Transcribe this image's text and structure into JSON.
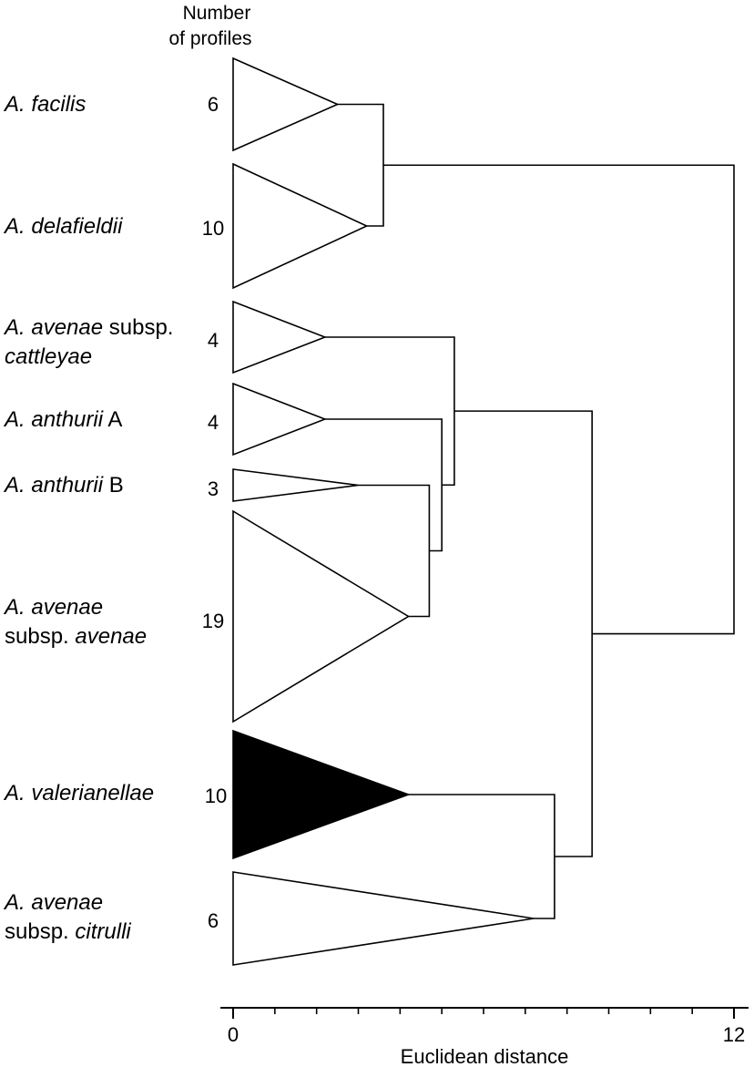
{
  "header": {
    "line1": "Number",
    "line2": "of profiles"
  },
  "taxa": [
    {
      "id": "facilis",
      "label_lines": [
        [
          {
            "text": "A. facilis",
            "italic": true
          }
        ]
      ],
      "count": "6"
    },
    {
      "id": "delafieldii",
      "label_lines": [
        [
          {
            "text": "A. delafieldii",
            "italic": true
          }
        ]
      ],
      "count": "10"
    },
    {
      "id": "cattleyae",
      "label_lines": [
        [
          {
            "text": "A. avenae",
            "italic": true
          },
          {
            "text": " subsp.",
            "italic": false
          }
        ],
        [
          {
            "text": "cattleyae",
            "italic": true
          }
        ]
      ],
      "count": "4"
    },
    {
      "id": "anthurii-a",
      "label_lines": [
        [
          {
            "text": "A. anthurii",
            "italic": true
          },
          {
            "text": " A",
            "italic": false
          }
        ]
      ],
      "count": "4"
    },
    {
      "id": "anthurii-b",
      "label_lines": [
        [
          {
            "text": "A. anthurii",
            "italic": true
          },
          {
            "text": " B",
            "italic": false
          }
        ]
      ],
      "count": "3"
    },
    {
      "id": "avenae-avenae",
      "label_lines": [
        [
          {
            "text": "A. avenae",
            "italic": true
          }
        ],
        [
          {
            "text": "subsp. ",
            "italic": false
          },
          {
            "text": "avenae",
            "italic": true
          }
        ]
      ],
      "count": "19"
    },
    {
      "id": "valerianellae",
      "label_lines": [
        [
          {
            "text": "A. valerianellae",
            "italic": true
          }
        ]
      ],
      "count": "10",
      "filled": true
    },
    {
      "id": "citrulli",
      "label_lines": [
        [
          {
            "text": "A. avenae",
            "italic": true
          }
        ],
        [
          {
            "text": "subsp. ",
            "italic": false
          },
          {
            "text": "citrulli",
            "italic": true
          }
        ]
      ],
      "count": "6"
    }
  ],
  "axis": {
    "label": "Euclidean distance",
    "min": 0,
    "max": 12,
    "tick_labels": [
      "0",
      "12"
    ],
    "minor_step": 1
  },
  "tree": {
    "tips": [
      {
        "id": "facilis",
        "depth": 2.5
      },
      {
        "id": "delafieldii",
        "depth": 3.2
      },
      {
        "id": "cattleyae",
        "depth": 2.2
      },
      {
        "id": "anthurii-a",
        "depth": 2.2
      },
      {
        "id": "anthurii-b",
        "depth": 3.0
      },
      {
        "id": "avenae-avenae",
        "depth": 4.2
      },
      {
        "id": "valerianellae",
        "depth": 4.2
      },
      {
        "id": "citrulli",
        "depth": 7.2
      }
    ],
    "merges": [
      {
        "id": "n1",
        "height": 3.6,
        "children": [
          "facilis",
          "delafieldii"
        ]
      },
      {
        "id": "n2",
        "height": 4.7,
        "children": [
          "anthurii-b",
          "avenae-avenae"
        ]
      },
      {
        "id": "n3",
        "height": 5.0,
        "children": [
          "anthurii-a",
          "n2"
        ]
      },
      {
        "id": "n4",
        "height": 5.3,
        "children": [
          "cattleyae",
          "n3"
        ]
      },
      {
        "id": "n5",
        "height": 7.7,
        "children": [
          "valerianellae",
          "citrulli"
        ]
      },
      {
        "id": "n6",
        "height": 8.6,
        "children": [
          "n4",
          "n5"
        ]
      },
      {
        "id": "root",
        "height": 12.0,
        "children": [
          "n1",
          "n6"
        ]
      }
    ]
  }
}
